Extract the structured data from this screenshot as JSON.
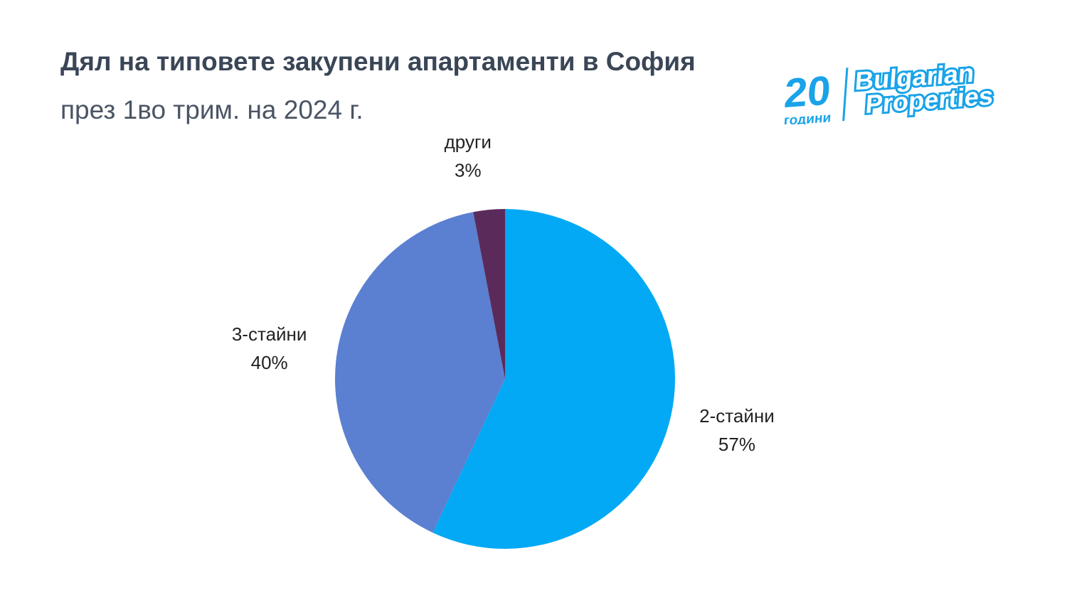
{
  "logo": {
    "years": "20",
    "years_word": "години",
    "brand_line1": "Bulgarian",
    "brand_line2": "Properties",
    "color": "#1AA3E8"
  },
  "chart_data": {
    "type": "pie",
    "title": "Дял на типовете закупени апартаменти в София",
    "subtitle": "през 1во трим. на 2024 г.",
    "start": "top, clockwise",
    "slices": [
      {
        "label": "2-стайни",
        "value": 57,
        "value_label": "57%",
        "color": "#03A9F4"
      },
      {
        "label": "3-стайни",
        "value": 40,
        "value_label": "40%",
        "color": "#5B7FD1"
      },
      {
        "label": "други",
        "value": 3,
        "value_label": "3%",
        "color": "#5A2A5A"
      }
    ]
  }
}
